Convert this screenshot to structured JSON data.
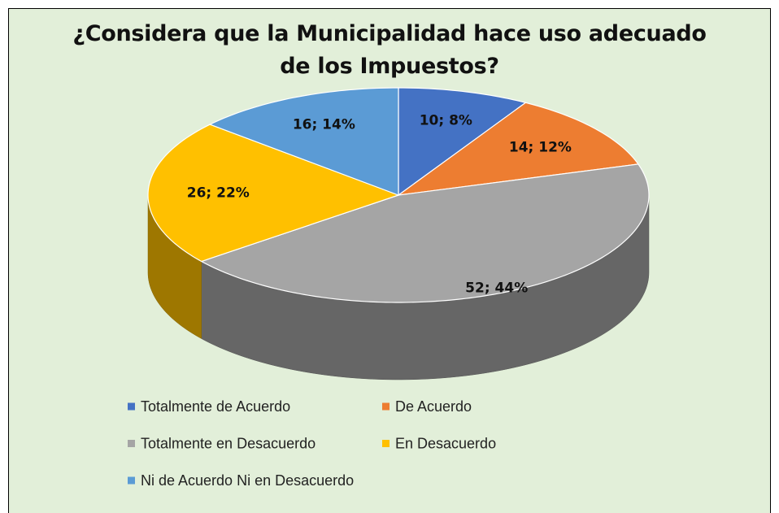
{
  "chart_data": {
    "type": "pie",
    "title": "¿Considera que la Municipalidad  hace uso adecuado de los Impuestos?",
    "categories": [
      "Totalmente de Acuerdo",
      "De Acuerdo",
      "Totalmente en Desacuerdo",
      "En Desacuerdo",
      "Ni de Acuerdo Ni en Desacuerdo"
    ],
    "values": [
      10,
      14,
      52,
      26,
      16
    ],
    "value_labels": [
      "10; 8%",
      "14; 12%",
      "52; 44%",
      "26; 22%",
      "16; 14%"
    ],
    "colors": [
      "#4472c4",
      "#ed7d31",
      "#a5a5a5",
      "#ffc000",
      "#5b9bd5"
    ],
    "legend": "bottom"
  }
}
